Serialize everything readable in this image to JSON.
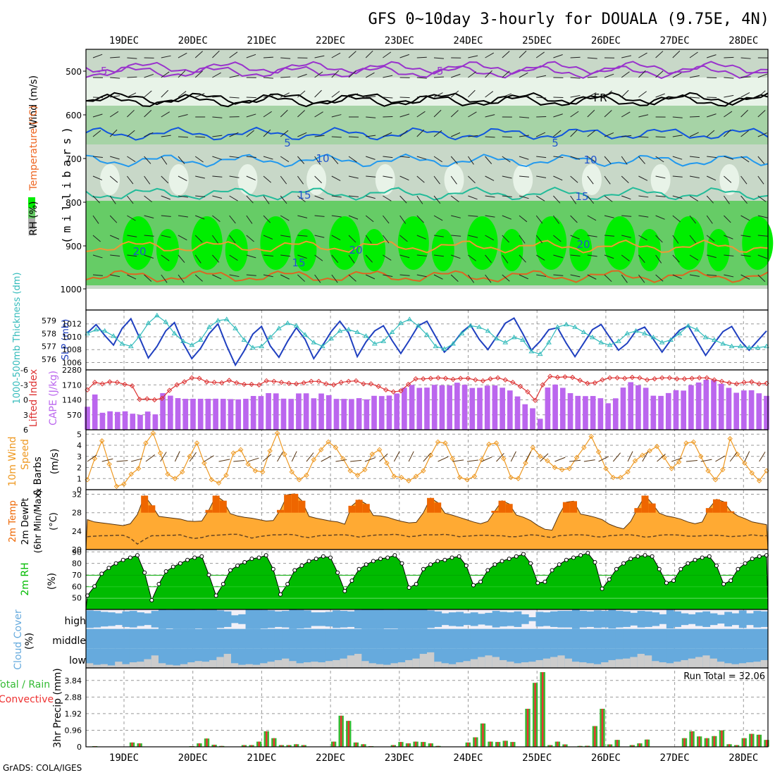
{
  "title": "GFS 0~10day 3-hourly for DOUALA (9.75E, 4N)",
  "credit": "GrADS: COLA/IGES",
  "dates": [
    "19DEC",
    "20DEC",
    "21DEC",
    "22DEC",
    "23DEC",
    "24DEC",
    "25DEC",
    "26DEC",
    "27DEC",
    "28DEC"
  ],
  "colors": {
    "frame": "#000000",
    "grid": "#999999",
    "rh_dark": "#00ee00",
    "rh_mid": "#66cc66",
    "rh_light": "#c8d8c8",
    "rh_pale": "#e8f3e8",
    "slp": "#2040c0",
    "thickness": "#33bbbb",
    "lifted": "#dd3333",
    "cape": "#bb66ee",
    "wind": "#ee9922",
    "temp_dark": "#ee6600",
    "temp_light": "#ffaa33",
    "dew": "#ffff88",
    "rh2m": "#00bb00",
    "cloud": "#66aadd",
    "cloud_low": "#cccccc",
    "precip_total": "#33bb33",
    "precip_conv": "#ee3333"
  },
  "panels": {
    "upper_air": {
      "y_label": "(millibars)",
      "legend_wind": "Wind (m/s)",
      "legend_temp": "Temperature (°C)",
      "legend_rh": "RH (%)",
      "levels": [
        "500",
        "600",
        "700",
        "800",
        "900",
        "1000"
      ],
      "isotherm_labels": [
        "-5",
        "-5",
        "5",
        "5",
        "10",
        "10",
        "15",
        "15",
        "20",
        "20",
        "20",
        "15",
        "FR"
      ]
    },
    "slp": {
      "label_left": "1000-500mb Thickness (dm)",
      "label_right": "SLP (mb)",
      "ticks_left": [
        "579",
        "578",
        "577",
        "576"
      ],
      "ticks_right": [
        "1012",
        "1010",
        "1008",
        "1006"
      ]
    },
    "cape": {
      "label_left": "Lifted Index",
      "label_right": "CAPE (J/kg)",
      "ticks_left": [
        "-6",
        "-3",
        "0",
        "3",
        "6"
      ],
      "ticks_right": [
        "2280",
        "1710",
        "1140",
        "570"
      ]
    },
    "wind10m": {
      "label_a": "10m Wind",
      "label_b": "Speed",
      "label_c": "& Barbs",
      "unit": "(m/s)",
      "ticks": [
        "5",
        "4",
        "3",
        "2",
        "1",
        "0"
      ]
    },
    "temp2m": {
      "label_a": "2m Temp",
      "label_b": "2m DewPt",
      "label_c": "(6hr Min/Max)",
      "unit": "(°C)",
      "ticks": [
        "32",
        "28",
        "24",
        "20"
      ]
    },
    "rh2m": {
      "label": "2m RH",
      "unit": "(%)",
      "ticks": [
        "90",
        "80",
        "70",
        "60",
        "50"
      ]
    },
    "cloud": {
      "label": "Cloud Cover",
      "unit": "(%)",
      "levels": [
        "high",
        "middle",
        "low"
      ]
    },
    "precip": {
      "label_a": "Total / Rain",
      "label_b": "Convective",
      "unit": "3hr Precip (mm)",
      "ticks": [
        "3.84",
        "2.88",
        "1.92",
        "0.96",
        "0"
      ],
      "run_total": "Run Total = 32.06"
    }
  },
  "chart_data": [
    {
      "type": "line",
      "name": "SLP",
      "ylabel": "SLP (mb)",
      "ylim": [
        1005.5,
        1013.5
      ],
      "values": [
        1010.6,
        1011.9,
        1010.2,
        1008.7,
        1011.3,
        1012.8,
        1009.8,
        1006.7,
        1008.5,
        1010.9,
        1012.2,
        1009.0,
        1006.6,
        1008.2,
        1010.5,
        1012.0,
        1008.6,
        1005.6,
        1007.8,
        1010.4,
        1011.6,
        1008.6,
        1006.8,
        1009.3,
        1011.4,
        1009.6,
        1006.6,
        1008.6,
        1010.8,
        1012.4,
        1010.6,
        1006.9,
        1009.2,
        1010.9,
        1011.7,
        1009.4,
        1007.4,
        1009.5,
        1011.7,
        1012.4,
        1010.0,
        1007.6,
        1008.9,
        1010.7,
        1011.8,
        1009.6,
        1008.0,
        1010.0,
        1012.1,
        1012.9,
        1010.5,
        1007.9,
        1009.3,
        1011.1,
        1011.4,
        1009.0,
        1006.9,
        1009.0,
        1011.1,
        1011.9,
        1009.9,
        1007.9,
        1009.0,
        1010.9,
        1011.5,
        1009.6,
        1007.6,
        1009.5,
        1011.0,
        1011.7,
        1009.4,
        1007.1,
        1009.0,
        1010.8,
        1011.6,
        1009.4,
        1007.9,
        1009.4,
        1010.9
      ],
      "ylim_thickness": [
        575.5,
        579.5
      ],
      "thickness": [
        578.0,
        578.3,
        578.2,
        577.8,
        577.2,
        577.0,
        577.8,
        578.8,
        579.4,
        578.9,
        578.0,
        577.4,
        577.1,
        577.5,
        578.5,
        579.0,
        579.1,
        578.4,
        577.5,
        576.9,
        577.0,
        577.7,
        578.4,
        578.8,
        578.6,
        577.9,
        577.3,
        577.0,
        577.6,
        578.2,
        578.3,
        578.1,
        577.8,
        577.2,
        577.4,
        578.1,
        578.8,
        579.1,
        578.6,
        577.9,
        577.0,
        576.8,
        577.2,
        578.0,
        578.6,
        578.5,
        578.2,
        577.6,
        577.3,
        577.7,
        577.5,
        576.6,
        576.4,
        577.3,
        578.5,
        578.7,
        578.5,
        578.1,
        577.7,
        577.3,
        577.1,
        577.4,
        578.0,
        578.2,
        578.0,
        577.7,
        577.3,
        577.5,
        578.0,
        578.6,
        578.3,
        577.7,
        577.5,
        577.2,
        577.0,
        577.0,
        576.9,
        576.9,
        577.0
      ]
    },
    {
      "type": "bar",
      "name": "CAPE",
      "ylabel": "CAPE (J/kg)",
      "ylim": [
        0,
        2280
      ],
      "values": [
        877,
        1343,
        648,
        703,
        679,
        703,
        612,
        569,
        693,
        586,
        1394,
        1299,
        1205,
        1179,
        1180,
        1180,
        1180,
        1183,
        1179,
        1168,
        1158,
        1180,
        1287,
        1284,
        1396,
        1386,
        1185,
        1177,
        1384,
        1388,
        1199,
        1381,
        1317,
        1176,
        1177,
        1170,
        1204,
        1159,
        1293,
        1284,
        1303,
        1382,
        1602,
        1708,
        1596,
        1606,
        1711,
        1696,
        1690,
        1792,
        1713,
        1593,
        1600,
        1682,
        1689,
        1602,
        1497,
        1270,
        972,
        819,
        419,
        1608,
        1720,
        1597,
        1394,
        1291,
        1282,
        1286,
        1202,
        1010,
        1198,
        1607,
        1812,
        1695,
        1599,
        1297,
        1290,
        1398,
        1507,
        1492,
        1700,
        1800,
        1905,
        1899,
        1750,
        1596,
        1409,
        1497,
        1505,
        1389,
        1292
      ],
      "lifted_index": [
        -2.0,
        -3.5,
        -3.2,
        -3.6,
        -3.5,
        -3.1,
        -2.8,
        -0.1,
        -0.2,
        0.0,
        -0.3,
        -1.9,
        -3.0,
        -3.6,
        -4.4,
        -4.3,
        -3.6,
        -3.5,
        -3.4,
        -3.9,
        -3.4,
        -3.1,
        -3.1,
        -3.0,
        -3.8,
        -3.7,
        -3.5,
        -3.3,
        -3.2,
        -3.4,
        -3.7,
        -3.7,
        -3.2,
        -3.0,
        -3.5,
        -3.7,
        -3.8,
        -3.2,
        -3.2,
        -2.7,
        -2.0,
        -1.6,
        -1.8,
        -3.1,
        -4.2,
        -4.2,
        -4.3,
        -4.4,
        -4.3,
        -4.1,
        -4.3,
        -4.3,
        -4.0,
        -3.8,
        -4.2,
        -4.4,
        -4.0,
        -3.5,
        -2.7,
        -1.6,
        0.1,
        -3.0,
        -4.7,
        -4.5,
        -4.6,
        -4.5,
        -3.9,
        -3.3,
        -3.4,
        -4.0,
        -4.4,
        -4.4,
        -4.3,
        -4.5,
        -4.4,
        -4.0,
        -4.2,
        -4.4,
        -4.4,
        -4.2,
        -4.2,
        -4.3,
        -4.4,
        -4.4,
        -4.0,
        -3.7,
        -3.4,
        -3.2,
        -3.5,
        -3.6,
        -3.2,
        -3.3
      ]
    },
    {
      "type": "line",
      "name": "10m Wind Speed",
      "ylabel": "(m/s)",
      "ylim": [
        0,
        5.4
      ],
      "values": [
        0.9,
        2.8,
        4.4,
        2.3,
        0.3,
        0.5,
        1.4,
        1.9,
        4.2,
        5.1,
        3.3,
        1.4,
        1.0,
        1.6,
        3.0,
        4.2,
        2.4,
        0.9,
        0.6,
        1.3,
        3.3,
        3.6,
        2.3,
        1.7,
        1.6,
        3.5,
        5.1,
        3.2,
        1.6,
        0.9,
        1.3,
        2.7,
        3.6,
        4.3,
        3.8,
        2.8,
        1.7,
        1.3,
        1.8,
        3.2,
        3.6,
        2.4,
        1.2,
        1.1,
        0.8,
        1.2,
        1.7,
        3.1,
        4.3,
        4.2,
        2.8,
        1.1,
        0.9,
        1.2,
        2.7,
        4.1,
        4.2,
        2.8,
        1.1,
        1.0,
        2.4,
        3.8,
        3.0,
        2.6,
        2.0,
        1.8,
        1.9,
        2.9,
        3.8,
        4.8,
        3.4,
        1.9,
        1.1,
        1.1,
        1.6,
        2.6,
        3.1,
        3.5,
        3.9,
        2.9,
        1.9,
        2.5,
        4.2,
        4.3,
        3.0,
        1.7,
        0.9,
        1.8,
        4.6,
        3.2,
        2.4,
        1.5,
        0.8,
        1.7
      ]
    },
    {
      "type": "area",
      "name": "2m Temp",
      "ylabel": "(°C)",
      "ylim": [
        20,
        33
      ],
      "values": [
        26.5,
        26.0,
        25.8,
        25.6,
        25.4,
        25.2,
        25.6,
        27.6,
        31.7,
        29.6,
        27.2,
        27.0,
        26.8,
        26.6,
        26.2,
        26.1,
        26.2,
        28.6,
        31.7,
        30.6,
        27.8,
        27.3,
        27.0,
        26.8,
        26.5,
        26.2,
        26.3,
        28.6,
        31.9,
        32.1,
        30.6,
        27.2,
        26.8,
        26.5,
        26.2,
        26.0,
        25.5,
        29.5,
        30.8,
        29.9,
        27.4,
        27.3,
        27.0,
        26.5,
        26.1,
        25.8,
        25.9,
        28.0,
        31.2,
        30.2,
        27.9,
        27.5,
        27.0,
        26.5,
        26.0,
        25.6,
        26.1,
        28.4,
        30.6,
        29.9,
        27.5,
        27.0,
        26.3,
        25.2,
        24.4,
        24.2,
        27.6,
        30.3,
        30.5,
        27.7,
        27.4,
        27.0,
        26.5,
        25.5,
        24.9,
        24.5,
        26.1,
        29.0,
        31.7,
        30.0,
        27.9,
        27.3,
        27.0,
        26.6,
        26.0,
        25.6,
        26.0,
        29.0,
        30.9,
        30.4,
        28.3,
        27.3,
        26.7,
        26.0,
        25.7,
        25.4
      ],
      "dewpoint": [
        22.8,
        22.9,
        23.0,
        23.0,
        23.1,
        23.1,
        22.5,
        21.2,
        22.2,
        23.0,
        23.0,
        23.1,
        23.1,
        23.2,
        22.7,
        22.4,
        22.6,
        23.0,
        23.1,
        23.2,
        23.3,
        23.3,
        22.9,
        22.5,
        22.8,
        23.0,
        23.2,
        23.2,
        23.3,
        23.2,
        22.8,
        22.6,
        22.9,
        23.1,
        23.1,
        23.2,
        23.2,
        23.0,
        22.7,
        22.9,
        23.1,
        23.2,
        23.2,
        23.3,
        23.1,
        22.8,
        22.9,
        23.2,
        23.2,
        23.2,
        23.3,
        23.1,
        22.8,
        22.9,
        23.0,
        23.1,
        23.1,
        23.0,
        23.0,
        22.8,
        22.8,
        23.0,
        23.2,
        23.1,
        22.8,
        22.6,
        23.0,
        23.1,
        23.2,
        23.2,
        23.1,
        22.8,
        22.7,
        23.0,
        23.1,
        23.2,
        23.2,
        23.0,
        22.7,
        22.8,
        23.1,
        23.2,
        23.2,
        23.1,
        22.9,
        22.9,
        23.0,
        23.1,
        23.1,
        23.0,
        22.8,
        22.9,
        23.0,
        23.2,
        23.0,
        23.0
      ]
    },
    {
      "type": "area",
      "name": "2m RH",
      "ylabel": "(%)",
      "ylim": [
        40,
        92
      ],
      "values": [
        52,
        60,
        71,
        76,
        80,
        83,
        85,
        87,
        72,
        48,
        62,
        73,
        77,
        80,
        83,
        85,
        86,
        70,
        52,
        62,
        74,
        78,
        81,
        84,
        85,
        87,
        75,
        53,
        62,
        74,
        78,
        82,
        84,
        86,
        85,
        72,
        56,
        65,
        75,
        79,
        82,
        84,
        85,
        87,
        80,
        59,
        62,
        75,
        79,
        82,
        83,
        85,
        86,
        78,
        61,
        64,
        74,
        79,
        82,
        84,
        86,
        88,
        80,
        63,
        64,
        74,
        79,
        83,
        85,
        87,
        89,
        81,
        58,
        66,
        75,
        80,
        84,
        86,
        87,
        86,
        75,
        63,
        65,
        75,
        80,
        83,
        85,
        86,
        78,
        62,
        65,
        75,
        80,
        84,
        86,
        87
      ]
    },
    {
      "type": "area",
      "name": "Cloud Cover",
      "ylabel": "(%)",
      "ylim": [
        0,
        100
      ],
      "high": [
        90,
        85,
        75,
        70,
        60,
        80,
        85,
        70,
        60,
        85,
        100,
        95,
        100,
        100,
        100,
        95,
        100,
        100,
        90,
        80,
        40,
        50,
        100,
        100,
        95,
        90,
        80,
        85,
        100,
        95,
        90,
        70,
        70,
        75,
        90,
        85,
        80,
        95,
        100,
        100,
        100,
        95,
        95,
        100,
        100,
        100,
        100,
        90,
        80,
        60,
        70,
        75,
        60,
        70,
        55,
        65,
        85,
        75,
        70,
        80,
        50,
        20,
        75,
        70,
        80,
        85,
        85,
        100,
        85,
        80,
        90,
        85,
        95,
        85,
        80,
        65,
        85,
        80,
        70,
        50,
        95,
        80,
        60,
        50,
        70,
        80,
        60,
        45,
        75,
        60,
        90,
        60,
        85,
        80
      ],
      "middle": [
        100,
        100,
        100,
        100,
        100,
        100,
        100,
        100,
        100,
        100,
        100,
        100,
        100,
        100,
        100,
        100,
        100,
        100,
        100,
        100,
        100,
        100,
        100,
        100,
        100,
        100,
        100,
        100,
        100,
        100,
        100,
        100,
        100,
        100,
        100,
        100,
        100,
        100,
        100,
        100,
        100,
        100,
        100,
        100,
        100,
        100,
        100,
        100,
        100,
        100,
        100,
        100,
        100,
        100,
        100,
        100,
        100,
        100,
        100,
        100,
        100,
        100,
        100,
        100,
        100,
        100,
        100,
        100,
        100,
        100,
        100,
        100,
        100,
        100,
        100,
        100,
        100,
        100,
        100,
        100,
        100,
        100,
        100,
        100,
        100,
        100,
        100,
        100,
        100,
        100,
        100,
        100,
        100,
        100
      ],
      "low": [
        15,
        10,
        12,
        8,
        20,
        12,
        18,
        20,
        28,
        40,
        15,
        10,
        8,
        12,
        18,
        22,
        20,
        25,
        35,
        45,
        15,
        10,
        12,
        10,
        15,
        20,
        25,
        30,
        22,
        15,
        18,
        20,
        18,
        22,
        25,
        30,
        40,
        45,
        22,
        15,
        12,
        10,
        15,
        18,
        25,
        30,
        45,
        50,
        20,
        15,
        12,
        18,
        22,
        28,
        35,
        40,
        35,
        25,
        20,
        15,
        18,
        20,
        25,
        30,
        35,
        40,
        30,
        20,
        18,
        15,
        12,
        18,
        25,
        28,
        30,
        35,
        45,
        40,
        22,
        18,
        15,
        20,
        25,
        30,
        35,
        40,
        30,
        20,
        15,
        12,
        15,
        18,
        20,
        25
      ]
    },
    {
      "type": "bar",
      "name": "3hr Precip",
      "ylabel": "3hr Precip (mm)",
      "ylim": [
        0,
        4.32
      ],
      "total": [
        0,
        0.04,
        0,
        0,
        0,
        0,
        0.25,
        0.2,
        0,
        0,
        0,
        0,
        0,
        0,
        0.04,
        0.2,
        0.48,
        0.12,
        0.05,
        0,
        0,
        0.1,
        0.1,
        0.3,
        0.9,
        0.5,
        0.1,
        0.1,
        0.15,
        0.1,
        0,
        0,
        0,
        0.3,
        1.8,
        1.5,
        0.25,
        0.15,
        0.04,
        0,
        0,
        0.1,
        0.28,
        0.2,
        0.3,
        0.28,
        0.2,
        0.05,
        0,
        0,
        0,
        0.25,
        0.55,
        1.35,
        0.3,
        0.28,
        0.35,
        0.28,
        0,
        2.2,
        3.7,
        4.45,
        0.1,
        0.3,
        0.14,
        0,
        0.05,
        0.06,
        1.2,
        2.2,
        0.14,
        0.4,
        0,
        0.1,
        0.2,
        0.42,
        0,
        0,
        0,
        0,
        0.5,
        0.9,
        0.6,
        0.5,
        0.62,
        0.95,
        0.15,
        0.1,
        0.5,
        0.75,
        0.7,
        0.4
      ]
    }
  ]
}
